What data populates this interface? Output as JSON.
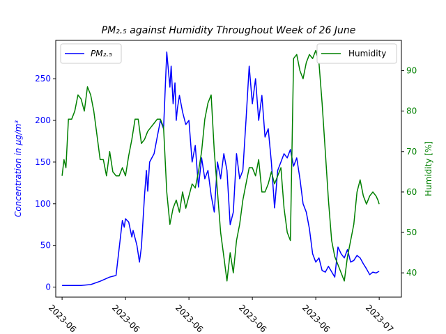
{
  "chart_data": {
    "type": "line",
    "title": "PM₂.₅ against Humidity Throughout Week of 26 June",
    "ylabel_left": "Concentration in μg/m³",
    "ylabel_right": "Humidity [%]",
    "xlabel": "",
    "ylim_left": [
      -12,
      296
    ],
    "ylim_right": [
      34,
      97.5
    ],
    "yticks_left": [
      0,
      50,
      100,
      150,
      200,
      250
    ],
    "yticks_right": [
      40,
      50,
      60,
      70,
      80,
      90
    ],
    "xlim": [
      -0.1,
      5.35
    ],
    "x_tick_positions": [
      0,
      1,
      2,
      3,
      4,
      5
    ],
    "x_tick_labels": [
      "2023-06",
      "2023-06",
      "2023-06",
      "2023-06",
      "2023-06",
      "2023-07"
    ],
    "grid": false,
    "colors": {
      "left": "#0000ff",
      "right": "#008000"
    },
    "legend": {
      "left_position": "top-left",
      "right_position": "top-right"
    },
    "series": [
      {
        "name": "PM₂.₅",
        "axis": "left",
        "color": "#0000ff",
        "x": [
          0,
          0.15,
          0.3,
          0.45,
          0.6,
          0.75,
          0.85,
          0.95,
          0.98,
          1.0,
          1.05,
          1.1,
          1.12,
          1.18,
          1.22,
          1.25,
          1.3,
          1.33,
          1.35,
          1.38,
          1.45,
          1.5,
          1.55,
          1.6,
          1.65,
          1.7,
          1.72,
          1.75,
          1.78,
          1.8,
          1.82,
          1.85,
          1.9,
          1.95,
          2.0,
          2.05,
          2.1,
          2.15,
          2.2,
          2.25,
          2.3,
          2.35,
          2.4,
          2.45,
          2.5,
          2.55,
          2.6,
          2.65,
          2.7,
          2.75,
          2.8,
          2.85,
          2.9,
          2.95,
          3.0,
          3.05,
          3.1,
          3.15,
          3.2,
          3.25,
          3.3,
          3.35,
          3.4,
          3.45,
          3.5,
          3.55,
          3.6,
          3.65,
          3.7,
          3.75,
          3.8,
          3.85,
          3.9,
          3.95,
          4.0,
          4.05,
          4.1,
          4.15,
          4.2,
          4.3,
          4.35,
          4.4,
          4.45,
          4.5,
          4.55,
          4.6,
          4.65,
          4.7,
          4.75,
          4.8,
          4.85,
          4.9,
          4.95,
          5.0
        ],
        "values": [
          2,
          2,
          2,
          3,
          7,
          12,
          14,
          80,
          72,
          82,
          78,
          60,
          68,
          50,
          30,
          48,
          110,
          140,
          115,
          150,
          160,
          180,
          200,
          190,
          282,
          240,
          265,
          220,
          245,
          200,
          215,
          230,
          210,
          195,
          200,
          150,
          170,
          120,
          155,
          130,
          140,
          110,
          90,
          150,
          130,
          160,
          140,
          75,
          90,
          160,
          130,
          140,
          200,
          265,
          220,
          250,
          200,
          230,
          180,
          190,
          150,
          95,
          140,
          150,
          160,
          155,
          165,
          145,
          155,
          130,
          100,
          90,
          70,
          40,
          30,
          35,
          20,
          18,
          25,
          12,
          48,
          40,
          35,
          45,
          30,
          32,
          38,
          35,
          28,
          22,
          15,
          18,
          17,
          19
        ]
      },
      {
        "name": "Humidity",
        "axis": "right",
        "color": "#008000",
        "x": [
          0,
          0.03,
          0.06,
          0.1,
          0.15,
          0.2,
          0.25,
          0.3,
          0.35,
          0.4,
          0.45,
          0.5,
          0.55,
          0.6,
          0.65,
          0.7,
          0.75,
          0.8,
          0.85,
          0.9,
          0.95,
          1.0,
          1.05,
          1.1,
          1.15,
          1.2,
          1.25,
          1.3,
          1.35,
          1.4,
          1.45,
          1.5,
          1.55,
          1.6,
          1.65,
          1.7,
          1.75,
          1.8,
          1.85,
          1.9,
          1.95,
          2.0,
          2.05,
          2.1,
          2.15,
          2.2,
          2.25,
          2.3,
          2.35,
          2.4,
          2.45,
          2.5,
          2.55,
          2.6,
          2.65,
          2.7,
          2.75,
          2.8,
          2.85,
          2.9,
          2.95,
          3.0,
          3.05,
          3.1,
          3.15,
          3.2,
          3.25,
          3.3,
          3.35,
          3.4,
          3.45,
          3.5,
          3.55,
          3.6,
          3.65,
          3.7,
          3.75,
          3.8,
          3.85,
          3.9,
          3.95,
          4.0,
          4.05,
          4.1,
          4.15,
          4.2,
          4.25,
          4.3,
          4.35,
          4.4,
          4.45,
          4.5,
          4.55,
          4.6,
          4.65,
          4.7,
          4.75,
          4.8,
          4.85,
          4.9,
          4.95,
          4.98,
          5.0
        ],
        "values": [
          64,
          68,
          66,
          78,
          78,
          80,
          84,
          83,
          80,
          86,
          84,
          80,
          74,
          68,
          68,
          64,
          70,
          65,
          64,
          64,
          66,
          64,
          69,
          73,
          78,
          78,
          72,
          73,
          75,
          76,
          77,
          78,
          78,
          76,
          60,
          52,
          56,
          58,
          55,
          60,
          56,
          59,
          62,
          61,
          65,
          70,
          78,
          82,
          84,
          70,
          60,
          50,
          44,
          38,
          45,
          40,
          48,
          52,
          58,
          62,
          66,
          66,
          64,
          68,
          60,
          60,
          62,
          65,
          62,
          64,
          66,
          56,
          50,
          48,
          93,
          94,
          90,
          88,
          92,
          94,
          93,
          95,
          92,
          82,
          70,
          58,
          48,
          44,
          42,
          40,
          38,
          44,
          48,
          52,
          60,
          63,
          59,
          57,
          59,
          60,
          59,
          58,
          57
        ]
      }
    ]
  }
}
